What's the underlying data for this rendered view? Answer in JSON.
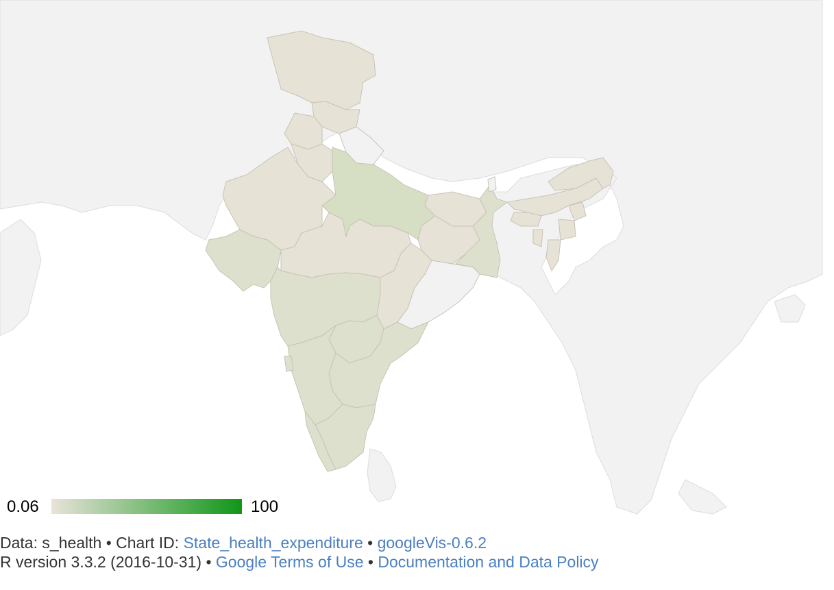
{
  "chart_data": {
    "type": "geo-choropleth",
    "region": "IN",
    "title": "State_health_expenditure",
    "color_axis": {
      "min": "0.06",
      "max": "100",
      "min_color": "#e9e3d9",
      "max_color": "#109618"
    },
    "regions": [
      {
        "name": "Jammu and Kashmir",
        "level": "low"
      },
      {
        "name": "Himachal Pradesh",
        "level": "low"
      },
      {
        "name": "Punjab",
        "level": "low"
      },
      {
        "name": "Uttarakhand",
        "level": "none"
      },
      {
        "name": "Haryana",
        "level": "low"
      },
      {
        "name": "Rajasthan",
        "level": "low"
      },
      {
        "name": "Uttar Pradesh",
        "level": "high"
      },
      {
        "name": "Gujarat",
        "level": "medium"
      },
      {
        "name": "Madhya Pradesh",
        "level": "low"
      },
      {
        "name": "Bihar",
        "level": "low"
      },
      {
        "name": "Jharkhand",
        "level": "low"
      },
      {
        "name": "West Bengal",
        "level": "medium"
      },
      {
        "name": "Chhattisgarh",
        "level": "low"
      },
      {
        "name": "Odisha",
        "level": "none"
      },
      {
        "name": "Maharashtra",
        "level": "medium"
      },
      {
        "name": "Telangana",
        "level": "medium"
      },
      {
        "name": "Andhra Pradesh",
        "level": "medium"
      },
      {
        "name": "Karnataka",
        "level": "medium"
      },
      {
        "name": "Goa",
        "level": "medium"
      },
      {
        "name": "Kerala",
        "level": "medium"
      },
      {
        "name": "Tamil Nadu",
        "level": "medium"
      },
      {
        "name": "Sikkim",
        "level": "none"
      },
      {
        "name": "Assam",
        "level": "low"
      },
      {
        "name": "Arunachal Pradesh",
        "level": "low"
      },
      {
        "name": "Meghalaya",
        "level": "low"
      },
      {
        "name": "Nagaland",
        "level": "low"
      },
      {
        "name": "Manipur",
        "level": "low"
      },
      {
        "name": "Mizoram",
        "level": "low"
      },
      {
        "name": "Tripura",
        "level": "low"
      }
    ],
    "level_colors": {
      "none": "#f2f2f2",
      "low": "#e7e2d6",
      "medium": "#dde0cc",
      "high": "#d6dfc4"
    }
  },
  "footer": {
    "line1_prefix": "Data: s_health • Chart ID: ",
    "chart_id_link": "State_health_expenditure",
    "sep1": " • ",
    "version_link": "googleVis-0.6.2",
    "line2_prefix": "R version 3.3.2 (2016-10-31) • ",
    "terms_link": "Google Terms of Use",
    "sep2": " • ",
    "policy_link": "Documentation and Data Policy"
  }
}
